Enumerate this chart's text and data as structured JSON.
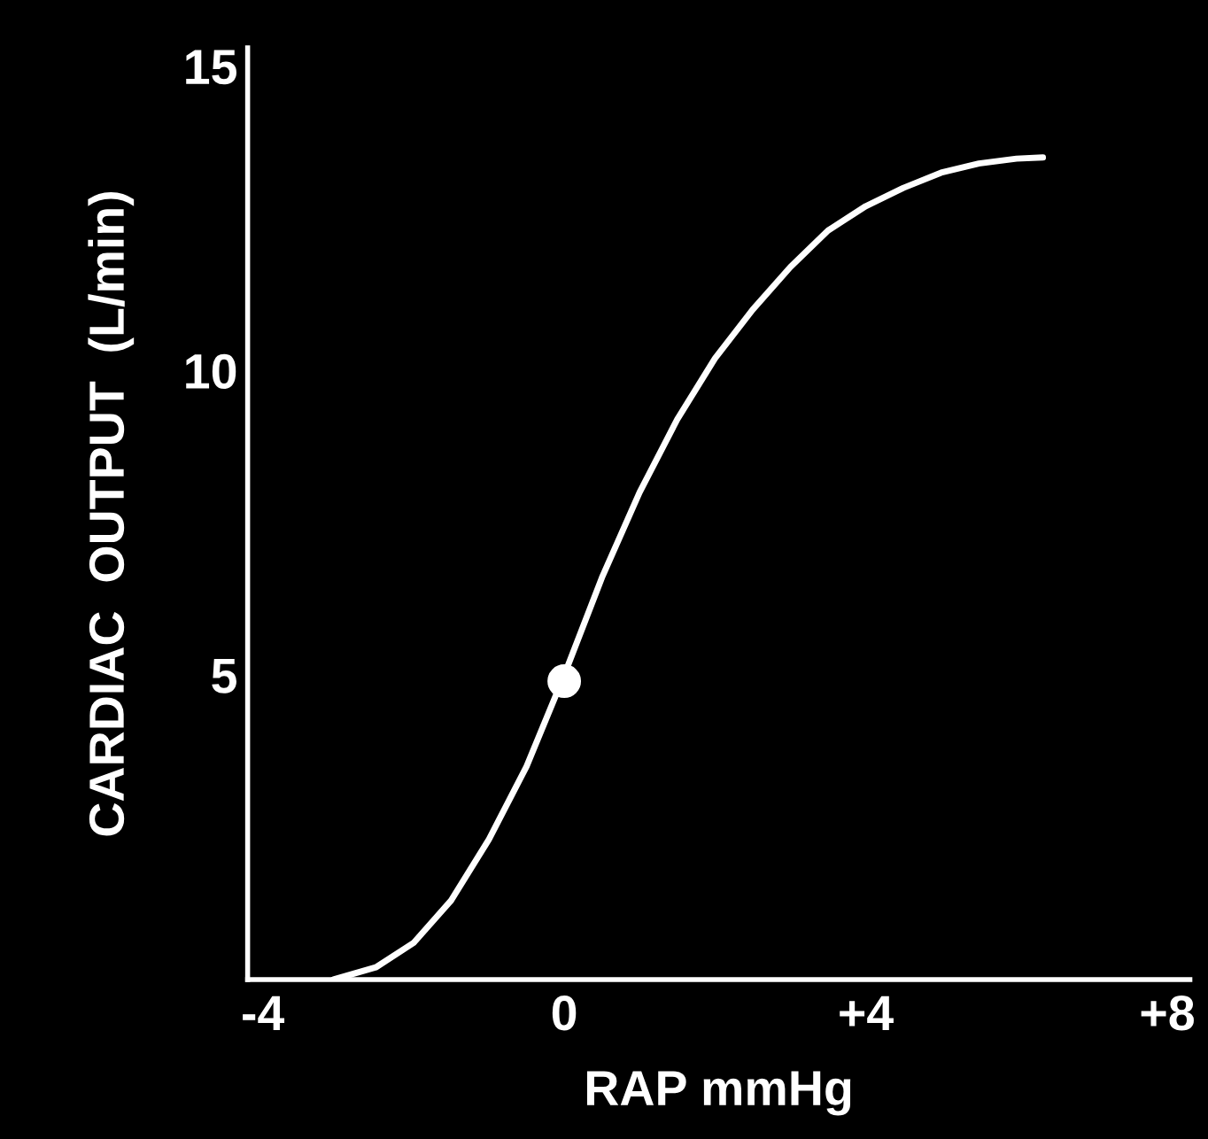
{
  "chart_data": {
    "type": "line",
    "xlabel": "RAP mmHg",
    "ylabel": "CARDIAC  OUTPUT  (L/min)",
    "xlim": [
      -4.2,
      8.3
    ],
    "ylim": [
      0,
      15.3
    ],
    "xticks": [
      {
        "value": -4,
        "label": "-4"
      },
      0,
      {
        "value": 4,
        "label": "+4"
      },
      {
        "value": 8,
        "label": "+8"
      }
    ],
    "yticks": [
      5,
      10,
      15
    ],
    "grid": false,
    "legend": false,
    "marker": "none",
    "line_style": "solid",
    "series": [
      {
        "color": "#ffffff",
        "x": [
          -3.06,
          -2.5,
          -2,
          -1.5,
          -1,
          -0.5,
          0,
          0.5,
          1,
          1.5,
          2,
          2.5,
          3,
          3.5,
          4,
          4.5,
          5,
          5.5,
          6,
          6.35
        ],
        "values": [
          0,
          0.2,
          0.6,
          1.3,
          2.3,
          3.5,
          5,
          6.6,
          8.0,
          9.2,
          10.2,
          11.0,
          11.7,
          12.3,
          12.7,
          13.0,
          13.25,
          13.4,
          13.48,
          13.5
        ]
      },
      {
        "type": "scatter",
        "color": "#ffffff",
        "marker": "circle",
        "x": [
          0
        ],
        "values": [
          4.9
        ]
      }
    ]
  }
}
